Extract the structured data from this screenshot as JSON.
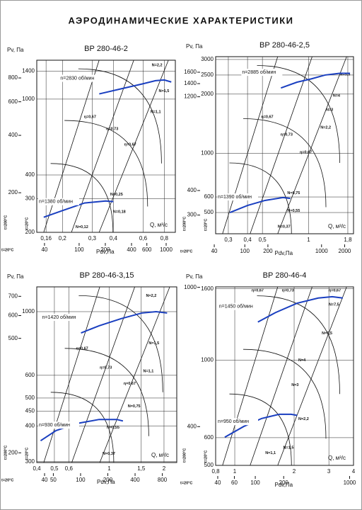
{
  "title": "АЭРОДИНАМИЧЕСКИЕ ХАРАКТЕРИСТИКИ",
  "chart_data": [
    {
      "type": "line",
      "title": "ВР 280-46-2",
      "y_label": "Pv, Па",
      "x_label": "Q, м³/с",
      "x2_label": "Pdv,Па",
      "y_temp_label": "t=20°C",
      "y2_temp_label": "t=200°C",
      "x2_temp_label": "t=20°C",
      "xscale": "log",
      "yscale": "log",
      "grid": true,
      "xlim": [
        0.141,
        0.93
      ],
      "xticks": [
        {
          "value": 0.16,
          "label": "0,16"
        },
        {
          "value": 0.2,
          "label": "0,2"
        },
        {
          "value": 0.3,
          "label": "0,3"
        },
        {
          "value": 0.4,
          "label": "0,4"
        },
        {
          "value": 0.6,
          "label": "0,6"
        },
        {
          "value": 0.8,
          "label": "0,8"
        }
      ],
      "x2lim": [
        32.6,
        1275
      ],
      "x2ticks": [
        40,
        100,
        200,
        400,
        600,
        1000
      ],
      "ylim": [
        200,
        1600
      ],
      "yticks": [
        200,
        300,
        400,
        1000,
        1400
      ],
      "y2lim": [
        124,
        991
      ],
      "y2ticks": [
        200,
        400,
        600,
        800
      ],
      "series": [
        {
          "name": "n=2830 об/мин",
          "color": "#1a3fc0",
          "x": [
            0.33,
            0.44,
            0.59,
            0.71,
            0.8,
            0.88
          ],
          "values": [
            1065,
            1130,
            1200,
            1250,
            1260,
            1230
          ]
        },
        {
          "name": "n=1380 об/мин",
          "color": "#1a3fc0",
          "x": [
            0.155,
            0.2,
            0.27,
            0.36,
            0.4
          ],
          "values": [
            240,
            260,
            285,
            292,
            290
          ]
        }
      ],
      "annotations": [
        "N=2,2",
        "N=1,5",
        "N=1,1",
        "η=0,67",
        "η=0,73",
        "η=0,67",
        "N=0,25",
        "N=0,18",
        "N=0,12"
      ]
    },
    {
      "type": "line",
      "title": "ВР 280-46-2,5",
      "y_label": "Pv, Па",
      "x_label": "Q, м³/с",
      "x2_label": "Pdv,Па",
      "y_temp_label": "t=20°C",
      "y2_temp_label": "t=200°C",
      "x2_temp_label": "t=20°C",
      "xscale": "log",
      "yscale": "log",
      "grid": true,
      "xlim": [
        0.248,
        1.96
      ],
      "xticks": [
        {
          "value": 0.3,
          "label": "0,3"
        },
        {
          "value": 0.4,
          "label": "0,4"
        },
        {
          "value": 0.5,
          "label": "0,5"
        },
        1,
        {
          "value": 1.8,
          "label": "1,8"
        }
      ],
      "x2lim": [
        41.7,
        2610
      ],
      "x2ticks": [
        40,
        100,
        200,
        1000,
        2000
      ],
      "ylim": [
        390,
        3100
      ],
      "yticks": [
        500,
        600,
        1000,
        2000,
        2500,
        3000
      ],
      "y2lim": [
        241,
        1920
      ],
      "y2ticks": [
        300,
        400,
        1200,
        1400,
        1600
      ],
      "series": [
        {
          "name": "n=2885 об/мин",
          "color": "#1a3fc0",
          "x": [
            0.66,
            0.84,
            1.04,
            1.28,
            1.59,
            1.86
          ],
          "values": [
            2150,
            2300,
            2390,
            2500,
            2550,
            2550
          ]
        },
        {
          "name": "n=1390 об/мин",
          "color": "#1a3fc0",
          "x": [
            0.307,
            0.4,
            0.52,
            0.68,
            0.76
          ],
          "values": [
            500,
            543,
            576,
            596,
            590
          ]
        }
      ],
      "annotations": [
        "N=5,5",
        "N=4",
        "N=3",
        "N=2,2",
        "η=0,67",
        "η=0,73",
        "η=0,67",
        "N=0,75",
        "N=0,55",
        "N=0,37"
      ]
    },
    {
      "type": "line",
      "title": "ВР 280-46-3,15",
      "y_label": "Pv, Па",
      "x_label": "Q, м³/с",
      "x2_label": "Pdv,Па",
      "y_temp_label": "t=20°C",
      "y2_temp_label": "t=200°C",
      "x2_temp_label": "t=20°C",
      "xscale": "log",
      "yscale": "log",
      "grid": true,
      "xlim": [
        0.4,
        2.35
      ],
      "xticks": [
        {
          "value": 0.4,
          "label": "0,4"
        },
        {
          "value": 0.5,
          "label": "0,5"
        },
        {
          "value": 0.6,
          "label": "0,6"
        },
        1,
        {
          "value": 1.5,
          "label": "1,5"
        },
        2
      ],
      "x2lim": [
        32.8,
        1155
      ],
      "x2ticks": [
        40,
        50,
        100,
        200,
        400,
        800
      ],
      "ylim": [
        298,
        1220
      ],
      "yticks": [
        300,
        400,
        450,
        500,
        600,
        1000
      ],
      "y2lim": [
        185,
        755
      ],
      "y2ticks": [
        200,
        500,
        600,
        700
      ],
      "series": [
        {
          "name": "n=1420 об/мин",
          "color": "#1a3fc0",
          "x": [
            0.7,
            0.88,
            1.16,
            1.51,
            1.81,
            2.08
          ],
          "values": [
            843,
            893,
            945,
            989,
            1000,
            989
          ]
        },
        {
          "name": "n=930 об/мин",
          "color": "#1a3fc0",
          "x": [
            0.42,
            0.51,
            0.67,
            0.88,
            1.1,
            1.19
          ],
          "values": [
            355,
            385,
            408,
            421,
            421,
            416
          ]
        }
      ],
      "annotations": [
        "N=2,2",
        "N=1,5",
        "N=1,1",
        "η=0,67",
        "η=0,73",
        "η=0,67",
        "N=0,75",
        "N=0,55",
        "N=0,37"
      ]
    },
    {
      "type": "line",
      "title": "ВР 280-46-4",
      "y_label": "Pv, Па",
      "x_label": "Q, м³/с",
      "x2_label": "Pdv,Па",
      "y_temp_label": "t=20°C",
      "y2_temp_label": "t=200°C",
      "x2_temp_label": "t=20°C",
      "xscale": "log",
      "yscale": "log",
      "grid": true,
      "xlim": [
        0.8,
        4
      ],
      "xticks": [
        {
          "value": 0.8,
          "label": "0,8"
        },
        1,
        2,
        3,
        4
      ],
      "x2lim": [
        38,
        1100
      ],
      "x2ticks": [
        40,
        60,
        100,
        200,
        1000
      ],
      "ylim": [
        500,
        1620
      ],
      "yticks": [
        500,
        600,
        1000,
        1600
      ],
      "y2lim": [
        310,
        1003
      ],
      "y2ticks": [
        400,
        1000
      ],
      "series": [
        {
          "name": "n=1450 об/мин",
          "color": "#1a3fc0",
          "x": [
            1.31,
            1.61,
            2.07,
            2.65,
            3.12,
            3.53
          ],
          "values": [
            1285,
            1368,
            1455,
            1505,
            1518,
            1505
          ]
        },
        {
          "name": "n=950 об/мин",
          "color": "#1a3fc0",
          "x": [
            0.89,
            1.11,
            1.37,
            1.68,
            1.93,
            2.07
          ],
          "values": [
            602,
            646,
            681,
            700,
            700,
            695
          ]
        }
      ],
      "annotations": [
        "η=0,67",
        "η=0,73",
        "η=0,67",
        "N=7,5",
        "N=5,5",
        "N=4",
        "N=3",
        "N=2,2",
        "N=1,5",
        "N=1,1"
      ]
    }
  ]
}
